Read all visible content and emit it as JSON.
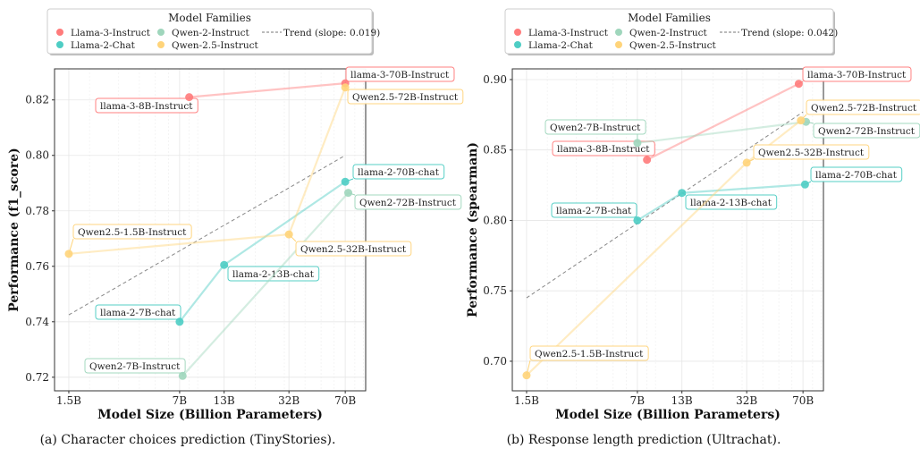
{
  "chart_data": [
    {
      "type": "line",
      "caption": "(a) Character choices prediction (TinyStories).",
      "xlabel": "Model Size (Billion Parameters)",
      "ylabel": "Performance (f1_score)",
      "xscale": "log",
      "xlim": [
        1.23,
        93
      ],
      "ylim": [
        0.7151,
        0.8312
      ],
      "xticks": [
        1.5,
        7,
        13,
        32,
        70
      ],
      "xtick_labels": [
        "1.5B",
        "7B",
        "13B",
        "32B",
        "70B"
      ],
      "yticks": [
        0.72,
        0.74,
        0.76,
        0.78,
        0.8,
        0.82
      ],
      "ytick_labels": [
        "0.72",
        "0.74",
        "0.76",
        "0.78",
        "0.80",
        "0.82"
      ],
      "grid": true,
      "legend": {
        "title": "Model Families",
        "placement": "top",
        "trend_label": "Trend (slope: 0.019)"
      },
      "trend": {
        "x": [
          1.5,
          70
        ],
        "y": [
          0.7425,
          0.8
        ]
      },
      "series": [
        {
          "name": "Llama-3-Instruct",
          "color": "#ff7b7b",
          "points": [
            {
              "label": "llama-3-8B-Instruct",
              "x": 8,
              "y": 0.821
            },
            {
              "label": "llama-3-70B-Instruct",
              "x": 70,
              "y": 0.826
            }
          ]
        },
        {
          "name": "Llama-2-Chat",
          "color": "#4ecdc4",
          "points": [
            {
              "label": "llama-2-7B-chat",
              "x": 7,
              "y": 0.74
            },
            {
              "label": "llama-2-13B-chat",
              "x": 13,
              "y": 0.7605
            },
            {
              "label": "llama-2-70B-chat",
              "x": 70,
              "y": 0.7905
            }
          ]
        },
        {
          "name": "Qwen-2-Instruct",
          "color": "#9fd6bc",
          "points": [
            {
              "label": "Qwen2-7B-Instruct",
              "x": 7.3,
              "y": 0.7205
            },
            {
              "label": "Qwen2-72B-Instruct",
              "x": 73,
              "y": 0.7865
            }
          ]
        },
        {
          "name": "Qwen-2.5-Instruct",
          "color": "#ffd47a",
          "points": [
            {
              "label": "Qwen2.5-1.5B-Instruct",
              "x": 1.5,
              "y": 0.7645
            },
            {
              "label": "Qwen2.5-32B-Instruct",
              "x": 32,
              "y": 0.7715
            },
            {
              "label": "Qwen2.5-72B-Instruct",
              "x": 70,
              "y": 0.8245
            }
          ]
        }
      ]
    },
    {
      "type": "line",
      "caption": "(b) Response length prediction (Ultrachat).",
      "xlabel": "Model Size (Billion Parameters)",
      "ylabel": "Performance (spearman)",
      "xscale": "log",
      "xlim": [
        1.23,
        93
      ],
      "ylim": [
        0.679,
        0.9076
      ],
      "xticks": [
        1.5,
        7,
        13,
        32,
        70
      ],
      "xtick_labels": [
        "1.5B",
        "7B",
        "13B",
        "32B",
        "70B"
      ],
      "yticks": [
        0.7,
        0.75,
        0.8,
        0.85,
        0.9
      ],
      "ytick_labels": [
        "0.70",
        "0.75",
        "0.80",
        "0.85",
        "0.90"
      ],
      "grid": true,
      "legend": {
        "title": "Model Families",
        "placement": "top",
        "trend_label": "Trend (slope: 0.042)"
      },
      "trend": {
        "x": [
          1.5,
          70
        ],
        "y": [
          0.745,
          0.877
        ]
      },
      "series": [
        {
          "name": "Llama-3-Instruct",
          "color": "#ff7b7b",
          "points": [
            {
              "label": "llama-3-8B-Instruct",
              "x": 8,
              "y": 0.843
            },
            {
              "label": "llama-3-70B-Instruct",
              "x": 66,
              "y": 0.897
            }
          ]
        },
        {
          "name": "Llama-2-Chat",
          "color": "#4ecdc4",
          "points": [
            {
              "label": "llama-2-7B-chat",
              "x": 7,
              "y": 0.8
            },
            {
              "label": "llama-2-13B-chat",
              "x": 13,
              "y": 0.8195
            },
            {
              "label": "llama-2-70B-chat",
              "x": 72,
              "y": 0.8255
            }
          ]
        },
        {
          "name": "Qwen-2-Instruct",
          "color": "#9fd6bc",
          "points": [
            {
              "label": "Qwen2-7B-Instruct",
              "x": 7,
              "y": 0.855
            },
            {
              "label": "Qwen2-72B-Instruct",
              "x": 73,
              "y": 0.87
            }
          ]
        },
        {
          "name": "Qwen-2.5-Instruct",
          "color": "#ffd47a",
          "points": [
            {
              "label": "Qwen2.5-1.5B-Instruct",
              "x": 1.5,
              "y": 0.69
            },
            {
              "label": "Qwen2.5-32B-Instruct",
              "x": 32,
              "y": 0.841
            },
            {
              "label": "Qwen2.5-72B-Instruct",
              "x": 68,
              "y": 0.871
            }
          ]
        }
      ]
    }
  ]
}
